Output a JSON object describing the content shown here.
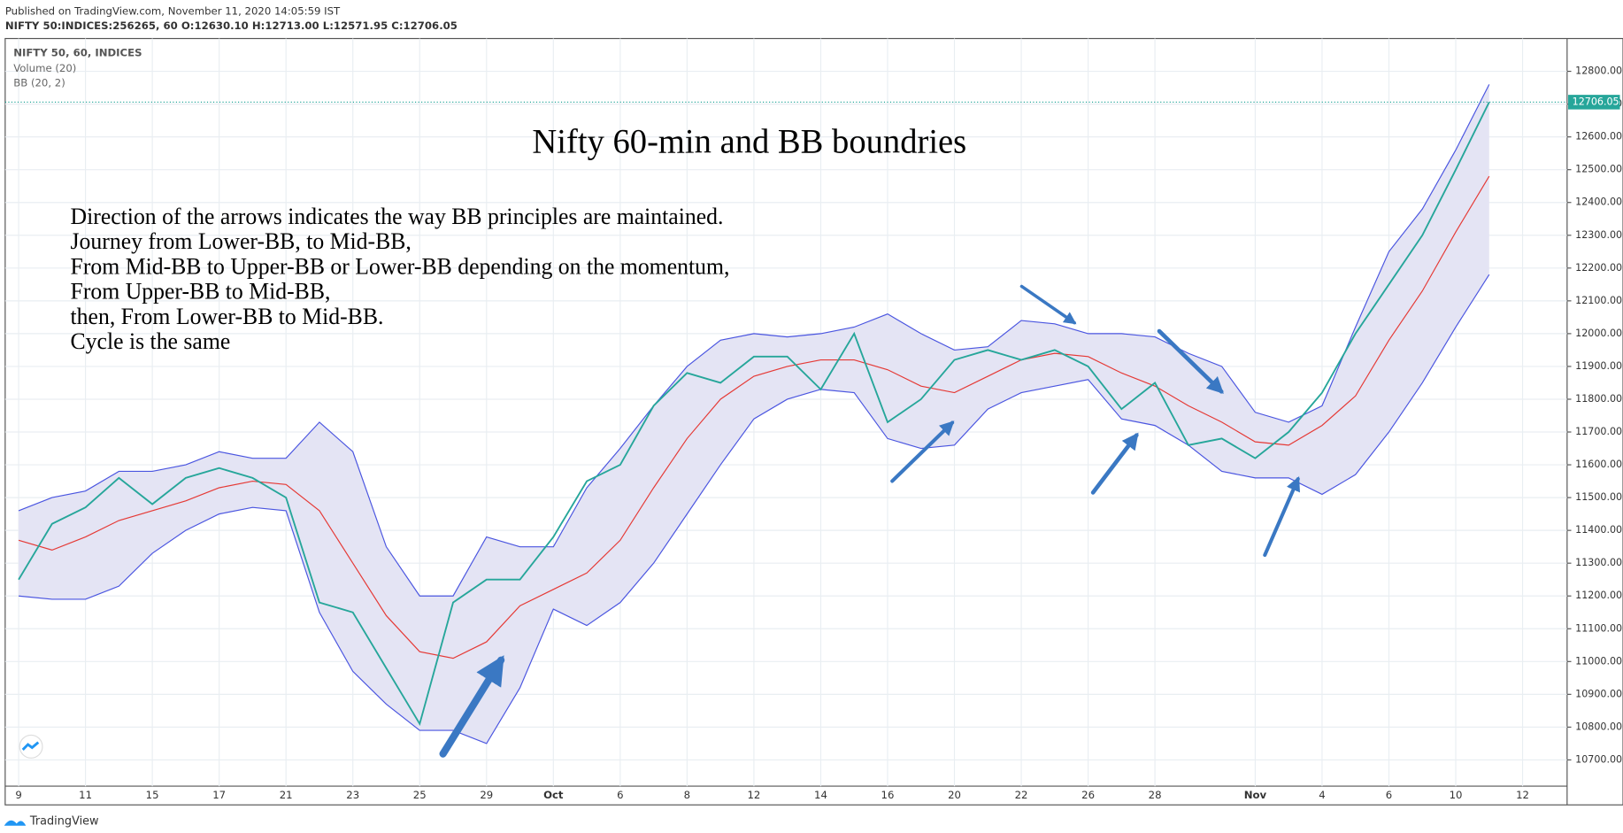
{
  "header": {
    "published": "Published on TradingView.com, November 11, 2020 14:05:59 IST",
    "symbol_line": "NIFTY 50:INDICES:256265, 60  O:12630.10 H:12713.00 L:12571.95 C:12706.05"
  },
  "footer": {
    "brand": "TradingView"
  },
  "chart_data": {
    "type": "line",
    "title": "Nifty 60-min and BB boundries",
    "legend": [
      "NIFTY 50, 60, INDICES",
      "Volume (20)",
      "BB (20, 2)"
    ],
    "annotations": [
      "Direction of the arrows indicates the way BB principles are maintained.",
      "Journey from Lower-BB, to Mid-BB,",
      "From Mid-BB to Upper-BB or Lower-BB depending on the momentum,",
      "From Upper-BB to Mid-BB,",
      "then, From Lower-BB to Mid-BB.",
      "Cycle is the same"
    ],
    "categories": [
      "9",
      null,
      "11",
      null,
      "15",
      null,
      "17",
      null,
      "21",
      null,
      "23",
      null,
      "25",
      null,
      "29",
      null,
      "Oct",
      null,
      "6",
      null,
      "8",
      null,
      "12",
      null,
      "14",
      null,
      "16",
      null,
      "20",
      null,
      "22",
      null,
      "26",
      null,
      "28",
      null,
      null,
      "Nov",
      null,
      "4",
      null,
      "6",
      null,
      "10",
      null,
      "12"
    ],
    "band_fill": "#e4e4f4",
    "series": [
      {
        "color": "#4a55e0",
        "values": [
          11460,
          11500,
          11520,
          11580,
          11580,
          11600,
          11640,
          11620,
          11620,
          11730,
          11640,
          11350,
          11200,
          11200,
          11380,
          11350,
          11350,
          11530,
          11650,
          11780,
          11900,
          11980,
          12000,
          11990,
          12000,
          12020,
          12060,
          12000,
          11950,
          11960,
          12040,
          12030,
          12000,
          12000,
          11990,
          11940,
          11900,
          11760,
          11730,
          11780,
          12020,
          12250,
          12380,
          12560,
          12760,
          null
        ]
      },
      {
        "color": "#e53935",
        "values": [
          11370,
          11340,
          11380,
          11430,
          11460,
          11490,
          11530,
          11550,
          11540,
          11460,
          11300,
          11140,
          11030,
          11010,
          11060,
          11170,
          11220,
          11270,
          11370,
          11530,
          11680,
          11800,
          11870,
          11900,
          11920,
          11920,
          11890,
          11840,
          11820,
          11870,
          11920,
          11940,
          11930,
          11880,
          11840,
          11780,
          11730,
          11670,
          11660,
          11720,
          11810,
          11980,
          12130,
          12310,
          12480,
          null
        ]
      },
      {
        "color": "#4a55e0",
        "values": [
          11200,
          11190,
          11190,
          11230,
          11330,
          11400,
          11450,
          11470,
          11460,
          11150,
          10970,
          10870,
          10790,
          10790,
          10750,
          10920,
          11160,
          11110,
          11180,
          11300,
          11450,
          11600,
          11740,
          11800,
          11830,
          11820,
          11680,
          11650,
          11660,
          11770,
          11820,
          11840,
          11860,
          11740,
          11720,
          11660,
          11580,
          11560,
          11560,
          11510,
          11570,
          11700,
          11850,
          12020,
          12180,
          null
        ]
      },
      {
        "color": "#26a69a",
        "values": [
          11250,
          11420,
          11470,
          11560,
          11480,
          11560,
          11590,
          11560,
          11500,
          11180,
          11150,
          10980,
          10810,
          11180,
          11250,
          11250,
          11380,
          11550,
          11600,
          11780,
          11880,
          11850,
          11930,
          11930,
          11830,
          12000,
          11730,
          11800,
          11920,
          11950,
          11920,
          11950,
          11900,
          11770,
          11850,
          11660,
          11680,
          11620,
          11700,
          11820,
          12000,
          12150,
          12300,
          12500,
          12706,
          null
        ]
      }
    ],
    "last_price": 12706.05,
    "last_price_color": "#26a69a",
    "ylim": [
      10620,
      12900
    ],
    "yticks": [
      {
        "value": 10700,
        "label": "10700.00"
      },
      {
        "value": 10800,
        "label": "10800.00"
      },
      {
        "value": 10900,
        "label": "10900.00"
      },
      {
        "value": 11000,
        "label": "11000.00"
      },
      {
        "value": 11100,
        "label": "11100.00"
      },
      {
        "value": 11200,
        "label": "11200.00"
      },
      {
        "value": 11300,
        "label": "11300.00"
      },
      {
        "value": 11400,
        "label": "11400.00"
      },
      {
        "value": 11500,
        "label": "11500.00"
      },
      {
        "value": 11600,
        "label": "11600.00"
      },
      {
        "value": 11700,
        "label": "11700.00"
      },
      {
        "value": 11800,
        "label": "11800.00"
      },
      {
        "value": 11900,
        "label": "11900.00"
      },
      {
        "value": 12000,
        "label": "12000.00"
      },
      {
        "value": 12100,
        "label": "12100.00"
      },
      {
        "value": 12200,
        "label": "12200.00"
      },
      {
        "value": 12300,
        "label": "12300.00"
      },
      {
        "value": 12400,
        "label": "12400.00"
      },
      {
        "value": 12500,
        "label": "12500.00"
      },
      {
        "value": 12600,
        "label": "12600.00"
      },
      {
        "value": 12700,
        "label": "12700.00"
      },
      {
        "value": 12800,
        "label": "12800.00"
      }
    ],
    "grid": true
  }
}
